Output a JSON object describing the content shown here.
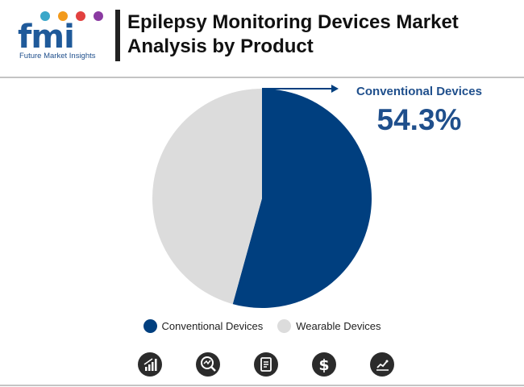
{
  "header": {
    "logo_text": "fmi",
    "logo_tagline": "Future Market Insights",
    "title": "Epilepsy Monitoring Devices Market Analysis by Product"
  },
  "colors": {
    "conventional": "#003f7f",
    "wearable": "#dcdcdc",
    "accent": "#1f4f8c"
  },
  "chart_data": {
    "type": "pie",
    "categories": [
      "Conventional Devices",
      "Wearable Devices"
    ],
    "values": [
      54.3,
      45.7
    ],
    "unit": "%",
    "title": "Epilepsy Monitoring Devices Market Analysis by Product",
    "legend": "bottom",
    "annotation": {
      "label": "Conventional Devices",
      "value": "54.3%"
    }
  },
  "footer_icons": [
    "bar-chart-icon",
    "magnifier-chart-icon",
    "report-icon",
    "dollar-icon",
    "line-chart-icon"
  ]
}
